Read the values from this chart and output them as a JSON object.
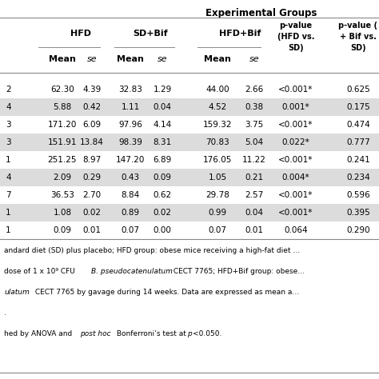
{
  "title": "Experimental Groups",
  "col_groups": [
    "HFD",
    "SD+Bif",
    "HFD+Bif"
  ],
  "rows": [
    [
      "2",
      "62.30",
      "4.39",
      "32.83",
      "1.29",
      "44.00",
      "2.66",
      "<0.001*",
      "0.625"
    ],
    [
      "4",
      "5.88",
      "0.42",
      "1.11",
      "0.04",
      "4.52",
      "0.38",
      "0.001*",
      "0.175"
    ],
    [
      "3",
      "171.20",
      "6.09",
      "97.96",
      "4.14",
      "159.32",
      "3.75",
      "<0.001*",
      "0.474"
    ],
    [
      "3",
      "151.91",
      "13.84",
      "98.39",
      "8.31",
      "70.83",
      "5.04",
      "0.022*",
      "0.777"
    ],
    [
      "1",
      "251.25",
      "8.97",
      "147.20",
      "6.89",
      "176.05",
      "11.22",
      "<0.001*",
      "0.241"
    ],
    [
      "4",
      "2.09",
      "0.29",
      "0.43",
      "0.09",
      "1.05",
      "0.21",
      "0.004*",
      "0.234"
    ],
    [
      "7",
      "36.53",
      "2.70",
      "8.84",
      "0.62",
      "29.78",
      "2.57",
      "<0.001*",
      "0.596"
    ],
    [
      "1",
      "1.08",
      "0.02",
      "0.89",
      "0.02",
      "0.99",
      "0.04",
      "<0.001*",
      "0.395"
    ],
    [
      "1",
      "0.09",
      "0.01",
      "0.07",
      "0.00",
      "0.07",
      "0.01",
      "0.064",
      "0.290"
    ]
  ],
  "shaded_rows": [
    1,
    3,
    5,
    7
  ],
  "footnote_lines": [
    "andard diet (SD) plus placebo; HFD group: obese mice receiving a high-fat diet …",
    "dose of 1 x 10⁹ CFU B. pseudocatenulatum CECT 7765; HFD+Bif group: obese…",
    "ulatum CECT 7765 by gavage during 14 weeks. Data are expressed as mean a…",
    ".",
    "hed by ANOVA and post hoc Bonferroni’s test at p<0.050."
  ],
  "bg_color": "#f0f0f0",
  "table_bg": "#ffffff",
  "shade_color": "#dcdcdc",
  "line_color": "#888888",
  "text_color": "#000000"
}
